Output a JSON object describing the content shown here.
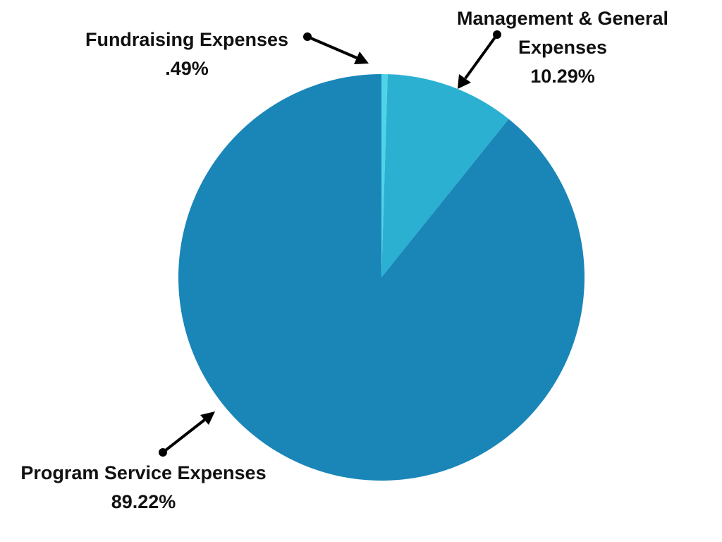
{
  "chart_data": {
    "type": "pie",
    "title": "",
    "start_angle": "12 o'clock",
    "direction": "clockwise",
    "slices": [
      {
        "label": "Fundraising Expenses",
        "value": 0.49,
        "display_value": ".49%",
        "color": "#4fd3e6"
      },
      {
        "label": "Management & General Expenses",
        "label_lines": [
          "Management & General",
          "Expenses"
        ],
        "value": 10.29,
        "display_value": "10.29%",
        "color": "#2bb0d2"
      },
      {
        "label": "Program Service Expenses",
        "value": 89.22,
        "display_value": "89.22%",
        "color": "#1a86b8"
      }
    ],
    "legend": "none",
    "labels": "outside callouts with arrows"
  }
}
